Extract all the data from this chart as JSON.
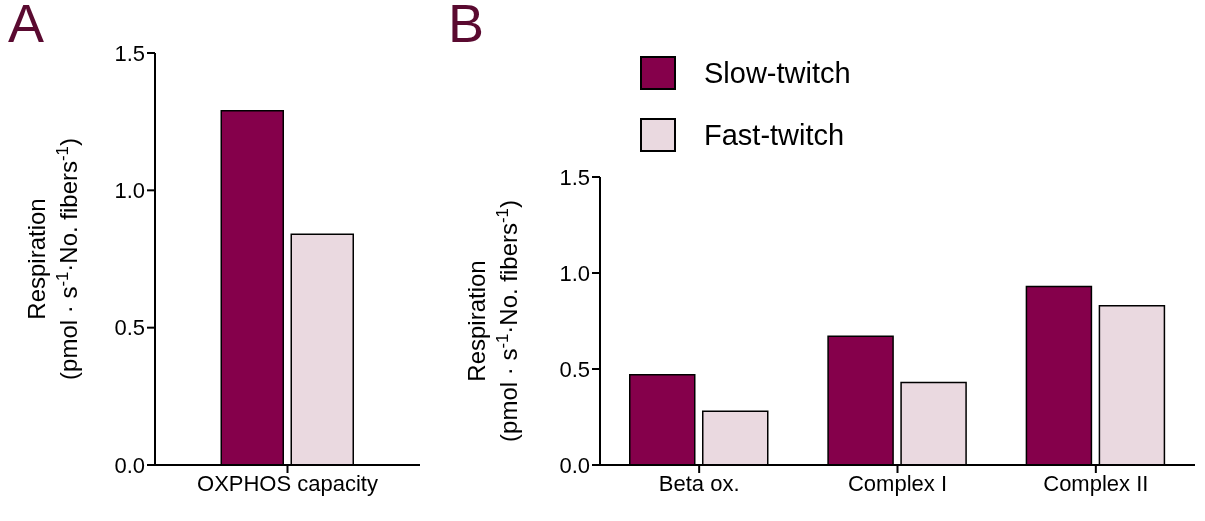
{
  "chart_data": [
    {
      "type": "bar",
      "title": "A",
      "categories": [
        "OXPHOS capacity"
      ],
      "ylabel": "Respiration (pmol · s$^{-1}$·No. fibers$^{-1}$)",
      "ylim": [
        0,
        1.5
      ],
      "yticks": [
        {
          "value": 0,
          "label": "0.0"
        },
        {
          "value": 0.5,
          "label": "0.5"
        },
        {
          "value": 1,
          "label": "1.0"
        },
        {
          "value": 1.5,
          "label": "1.5"
        }
      ],
      "grid": false,
      "series": [
        {
          "color": "#85004b",
          "values": [
            1.29
          ]
        },
        {
          "color": "#ead9e0",
          "values": [
            0.84
          ]
        }
      ]
    },
    {
      "type": "bar",
      "title": "B",
      "categories": [
        "Beta ox.",
        "Complex I",
        "Complex II"
      ],
      "ylabel": "Respiration (pmol · s$^{-1}$·No. fibers$^{-1}$)",
      "ylim": [
        0,
        1.5
      ],
      "yticks": [
        {
          "value": 0,
          "label": "0.0"
        },
        {
          "value": 0.5,
          "label": "0.5"
        },
        {
          "value": 1,
          "label": "1.0"
        },
        {
          "value": 1.5,
          "label": "1.5"
        }
      ],
      "grid": false,
      "legend": "top left",
      "series": [
        {
          "name": "Slow-twitch",
          "color": "#85004b",
          "values": [
            0.47,
            0.67,
            0.93
          ]
        },
        {
          "name": "Fast-twitch",
          "color": "#ead9e0",
          "values": [
            0.28,
            0.43,
            0.83
          ]
        }
      ]
    }
  ]
}
